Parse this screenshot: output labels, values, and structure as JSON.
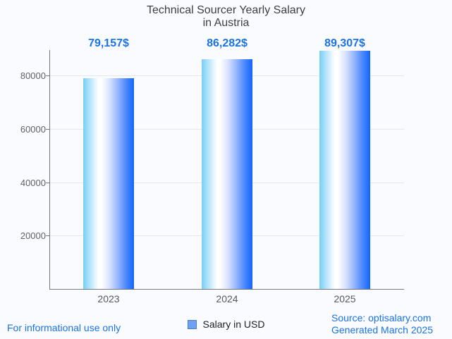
{
  "title": {
    "lines": [
      "Technical Sourcer Yearly Salary",
      "in Austria"
    ]
  },
  "chart_data": {
    "type": "bar",
    "title": "Technical Sourcer Yearly Salary in Austria",
    "categories": [
      "2023",
      "2024",
      "2025"
    ],
    "series": [
      {
        "name": "Salary in USD",
        "values": [
          79157,
          86282,
          89307
        ]
      }
    ],
    "value_labels": [
      "79,157$",
      "86,282$",
      "89,307$"
    ],
    "xlabel": "",
    "ylabel": "",
    "ylim": [
      0,
      89650
    ],
    "yticks": [
      20000,
      40000,
      60000,
      80000
    ],
    "grid": "horizontal",
    "legend_position": "bottom"
  },
  "legend": {
    "label": "Salary in USD",
    "swatch_color": "#6fa1f2",
    "swatch_border": "#4b7fc9"
  },
  "footer": {
    "disclaimer": "For informational use only",
    "source": "Source: optisalary.com",
    "generated": "Generated March 2025"
  },
  "colors": {
    "accent_blue": "#1a73e8",
    "bar_gradient_left": "#79cff6",
    "bar_gradient_mid": "#ffffff",
    "bar_gradient_right": "#1465fb",
    "axis": "#75797e",
    "gridline": "#e4e7ec",
    "tick_text": "#5f6368",
    "title_text": "#3c4043",
    "background": "#fafbfe"
  }
}
